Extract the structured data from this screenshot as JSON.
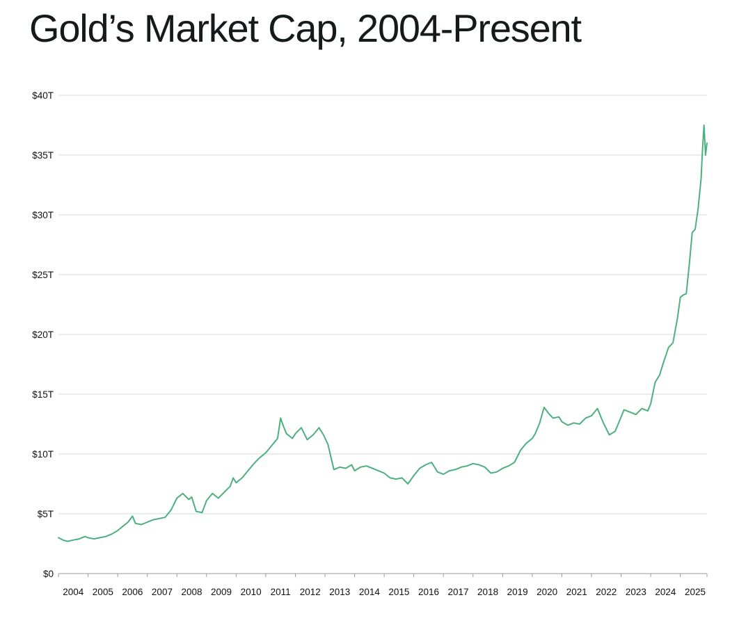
{
  "chart_data": {
    "type": "line",
    "title": "Gold’s Market Cap, 2004-Present",
    "xlabel": "",
    "ylabel": "",
    "xlim": [
      2004.0,
      2025.9
    ],
    "ylim": [
      0,
      40
    ],
    "y_unit": "trillion USD",
    "y_ticks": [
      0,
      5,
      10,
      15,
      20,
      25,
      30,
      35,
      40
    ],
    "y_tick_labels": [
      "$0",
      "$5T",
      "$10T",
      "$15T",
      "$20T",
      "$25T",
      "$30T",
      "$35T",
      "$40T"
    ],
    "x_tick_labels": [
      "2004",
      "2005",
      "2006",
      "2007",
      "2008",
      "2009",
      "2010",
      "2011",
      "2012",
      "2013",
      "2014",
      "2015",
      "2016",
      "2017",
      "2018",
      "2019",
      "2020",
      "2021",
      "2022",
      "2023",
      "2024",
      "2025"
    ],
    "grid": true,
    "legend": "none",
    "series": [
      {
        "color": "#4cb07e",
        "x": [
          2004.0,
          2004.15,
          2004.3,
          2004.5,
          2004.7,
          2004.9,
          2005.0,
          2005.2,
          2005.4,
          2005.6,
          2005.8,
          2006.0,
          2006.2,
          2006.35,
          2006.5,
          2006.6,
          2006.8,
          2007.0,
          2007.2,
          2007.4,
          2007.6,
          2007.8,
          2008.0,
          2008.2,
          2008.4,
          2008.5,
          2008.65,
          2008.85,
          2009.0,
          2009.2,
          2009.4,
          2009.6,
          2009.8,
          2009.9,
          2010.0,
          2010.2,
          2010.4,
          2010.6,
          2010.8,
          2011.0,
          2011.2,
          2011.4,
          2011.5,
          2011.6,
          2011.7,
          2011.9,
          2012.0,
          2012.2,
          2012.4,
          2012.6,
          2012.8,
          2012.95,
          2013.1,
          2013.3,
          2013.5,
          2013.7,
          2013.9,
          2014.0,
          2014.2,
          2014.4,
          2014.6,
          2014.8,
          2015.0,
          2015.2,
          2015.4,
          2015.6,
          2015.8,
          2016.0,
          2016.2,
          2016.4,
          2016.6,
          2016.8,
          2017.0,
          2017.2,
          2017.4,
          2017.6,
          2017.8,
          2018.0,
          2018.2,
          2018.4,
          2018.6,
          2018.8,
          2019.0,
          2019.2,
          2019.4,
          2019.6,
          2019.8,
          2020.0,
          2020.1,
          2020.25,
          2020.4,
          2020.55,
          2020.7,
          2020.9,
          2021.0,
          2021.2,
          2021.4,
          2021.6,
          2021.8,
          2022.0,
          2022.2,
          2022.4,
          2022.6,
          2022.8,
          2022.95,
          2023.1,
          2023.3,
          2023.5,
          2023.7,
          2023.9,
          2024.0,
          2024.15,
          2024.3,
          2024.45,
          2024.6,
          2024.75,
          2024.9,
          2025.0,
          2025.1,
          2025.2,
          2025.3,
          2025.4,
          2025.5,
          2025.6,
          2025.7,
          2025.75,
          2025.8,
          2025.85,
          2025.9
        ],
        "y": [
          3.0,
          2.8,
          2.7,
          2.8,
          2.9,
          3.1,
          3.0,
          2.9,
          3.0,
          3.1,
          3.3,
          3.6,
          4.0,
          4.3,
          4.8,
          4.2,
          4.1,
          4.3,
          4.5,
          4.6,
          4.7,
          5.3,
          6.3,
          6.7,
          6.2,
          6.4,
          5.2,
          5.1,
          6.1,
          6.7,
          6.3,
          6.8,
          7.3,
          8.0,
          7.6,
          8.0,
          8.6,
          9.2,
          9.7,
          10.1,
          10.7,
          11.3,
          13.0,
          12.3,
          11.7,
          11.3,
          11.7,
          12.2,
          11.2,
          11.6,
          12.2,
          11.6,
          10.8,
          8.7,
          8.9,
          8.8,
          9.1,
          8.6,
          8.9,
          9.0,
          8.8,
          8.6,
          8.4,
          8.0,
          7.9,
          8.0,
          7.5,
          8.2,
          8.8,
          9.1,
          9.3,
          8.5,
          8.3,
          8.6,
          8.7,
          8.9,
          9.0,
          9.2,
          9.1,
          8.9,
          8.4,
          8.5,
          8.8,
          9.0,
          9.3,
          10.3,
          10.9,
          11.3,
          11.7,
          12.6,
          13.9,
          13.4,
          13.0,
          13.1,
          12.7,
          12.4,
          12.6,
          12.5,
          13.0,
          13.2,
          13.8,
          12.6,
          11.6,
          11.9,
          12.8,
          13.7,
          13.5,
          13.3,
          13.8,
          13.6,
          14.2,
          16.0,
          16.6,
          17.8,
          18.9,
          19.3,
          21.3,
          23.1,
          23.3,
          23.4,
          25.8,
          28.5,
          28.8,
          30.5,
          33.0,
          35.5,
          37.5,
          35.0,
          36.0
        ]
      }
    ]
  }
}
